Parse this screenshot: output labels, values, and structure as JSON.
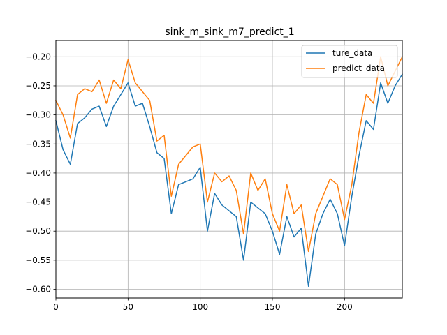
{
  "chart_data": {
    "type": "line",
    "title": "sink_m_sink_m7_predict_1",
    "xlabel": "",
    "ylabel": "",
    "xlim": [
      0,
      240
    ],
    "ylim": [
      -0.615,
      -0.172
    ],
    "xticks": [
      0,
      50,
      100,
      150,
      200
    ],
    "yticks": [
      -0.6,
      -0.55,
      -0.5,
      -0.45,
      -0.4,
      -0.35,
      -0.3,
      -0.25,
      -0.2
    ],
    "grid": true,
    "legend_position": "top-right",
    "x": [
      0,
      5,
      10,
      15,
      20,
      25,
      30,
      35,
      40,
      45,
      50,
      55,
      60,
      65,
      70,
      75,
      80,
      85,
      90,
      95,
      100,
      105,
      110,
      115,
      120,
      125,
      130,
      135,
      140,
      145,
      150,
      155,
      160,
      165,
      170,
      175,
      180,
      185,
      190,
      195,
      200,
      205,
      210,
      215,
      220,
      225,
      230,
      235,
      240
    ],
    "series": [
      {
        "name": "ture_data",
        "color": "#1f77b4",
        "values": [
          -0.31,
          -0.36,
          -0.385,
          -0.315,
          -0.305,
          -0.29,
          -0.285,
          -0.32,
          -0.285,
          -0.265,
          -0.245,
          -0.285,
          -0.28,
          -0.32,
          -0.365,
          -0.375,
          -0.47,
          -0.42,
          -0.415,
          -0.41,
          -0.39,
          -0.5,
          -0.435,
          -0.455,
          -0.465,
          -0.475,
          -0.55,
          -0.45,
          -0.46,
          -0.47,
          -0.5,
          -0.54,
          -0.475,
          -0.51,
          -0.495,
          -0.595,
          -0.505,
          -0.47,
          -0.445,
          -0.47,
          -0.525,
          -0.44,
          -0.37,
          -0.31,
          -0.325,
          -0.245,
          -0.28,
          -0.25,
          -0.23
        ]
      },
      {
        "name": "predict_data",
        "color": "#ff7f0e",
        "values": [
          -0.275,
          -0.3,
          -0.34,
          -0.265,
          -0.255,
          -0.26,
          -0.24,
          -0.28,
          -0.24,
          -0.255,
          -0.205,
          -0.245,
          -0.26,
          -0.275,
          -0.345,
          -0.335,
          -0.44,
          -0.385,
          -0.37,
          -0.355,
          -0.35,
          -0.45,
          -0.4,
          -0.415,
          -0.405,
          -0.43,
          -0.505,
          -0.4,
          -0.43,
          -0.41,
          -0.47,
          -0.5,
          -0.42,
          -0.47,
          -0.455,
          -0.535,
          -0.47,
          -0.44,
          -0.41,
          -0.42,
          -0.48,
          -0.42,
          -0.33,
          -0.265,
          -0.28,
          -0.2,
          -0.25,
          -0.225,
          -0.2
        ]
      }
    ]
  }
}
